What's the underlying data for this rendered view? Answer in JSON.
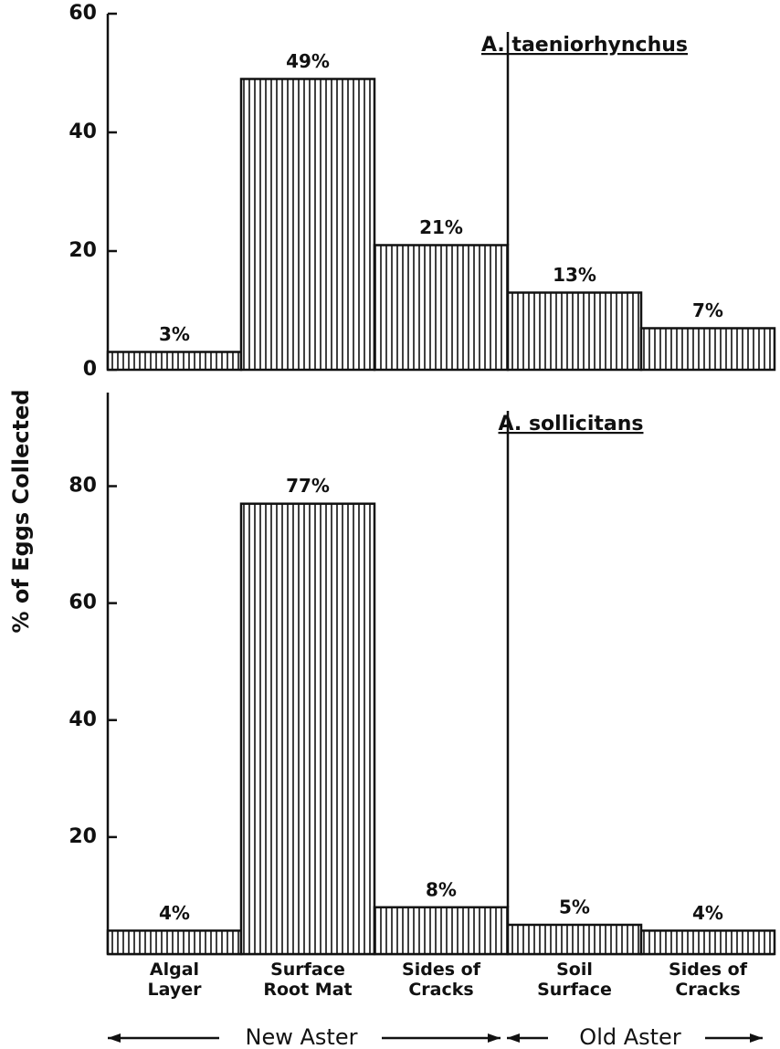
{
  "chart_data": [
    {
      "type": "bar",
      "title": "A. taeniorhynchus",
      "y_axis_label": "% of Eggs Collected",
      "values": [
        3,
        49,
        21,
        13,
        7
      ],
      "value_labels": [
        "3%",
        "49%",
        "21%",
        "13%",
        "7%"
      ],
      "ylim": [
        0,
        60
      ],
      "yticks": [
        0,
        20,
        40,
        60
      ],
      "color": "#111111"
    },
    {
      "type": "bar",
      "title": "A. sollicitans",
      "categories": [
        "Algal\nLayer",
        "Surface\nRoot Mat",
        "Sides of\nCracks",
        "Soil\nSurface",
        "Sides of\nCracks"
      ],
      "group_labels": [
        "New Aster",
        "Old Aster"
      ],
      "values": [
        4,
        77,
        8,
        5,
        4
      ],
      "value_labels": [
        "4%",
        "77%",
        "8%",
        "5%",
        "4%"
      ],
      "ylim": [
        0,
        96
      ],
      "yticks": [
        20,
        40,
        60,
        80
      ],
      "color": "#111111"
    }
  ]
}
